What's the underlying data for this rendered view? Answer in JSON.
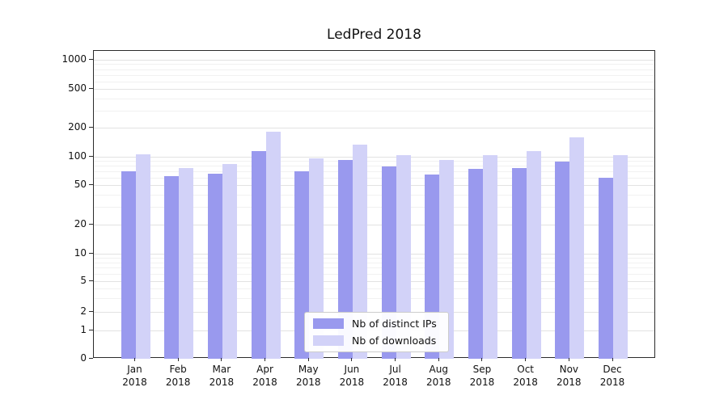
{
  "chart_data": {
    "type": "bar",
    "title": "LedPred 2018",
    "categories": [
      "Jan 2018",
      "Feb 2018",
      "Mar 2018",
      "Apr 2018",
      "May 2018",
      "Jun 2018",
      "Jul 2018",
      "Aug 2018",
      "Sep 2018",
      "Oct 2018",
      "Nov 2018",
      "Dec 2018"
    ],
    "series": [
      {
        "name": "Nb of distinct IPs",
        "color": "#9999ee",
        "values": [
          70,
          62,
          66,
          115,
          70,
          92,
          79,
          65,
          74,
          76,
          89,
          60
        ]
      },
      {
        "name": "Nb of downloads",
        "color": "#d2d2f8",
        "values": [
          105,
          76,
          83,
          180,
          96,
          133,
          104,
          93,
          104,
          115,
          160,
          104
        ]
      }
    ],
    "yscale": "symlog",
    "yticks": [
      0,
      1,
      2,
      5,
      10,
      20,
      50,
      100,
      200,
      500,
      1000
    ],
    "ylim": [
      0,
      1000
    ],
    "grid": "horizontal major+minor",
    "legend_position": "lower center"
  },
  "colors": {
    "grid_major": "#e2e2e2",
    "grid_minor": "#f1f1f1",
    "spine": "#2b2b2b",
    "text": "#111111",
    "legend_border": "#cccccc"
  }
}
